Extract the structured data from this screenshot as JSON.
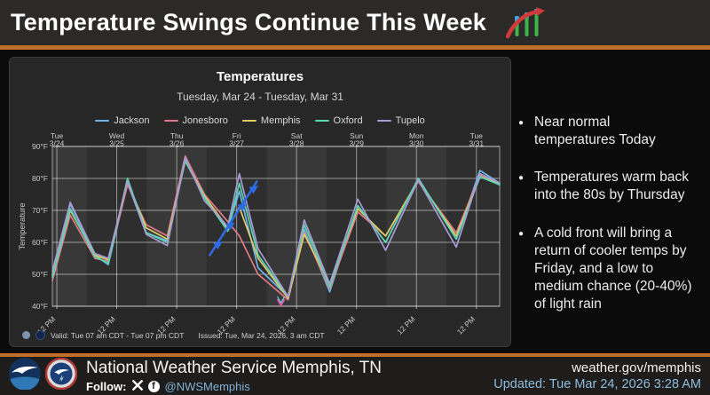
{
  "header": {
    "title": "Temperature Swings Continue This Week"
  },
  "colors": {
    "accent_orange": "#bf6f28",
    "link_blue": "#8fbcdc",
    "panel_bg": "#272727",
    "front_blue": "#2e6ae2"
  },
  "chart_panel": {
    "title": "Temperatures",
    "subtitle": "Tuesday, Mar 24 - Tuesday, Mar 31",
    "valid": "Valid: Tue 07 am CDT - Tue 07 pm CDT",
    "issued": "Issued: Tue, Mar 24, 2026, 3 am CDT"
  },
  "chart_data": {
    "type": "line",
    "title": "Temperatures",
    "subtitle": "Tuesday, Mar 24 - Tuesday, Mar 31",
    "ylabel": "Temperature",
    "ylim": [
      40,
      90
    ],
    "y_ticks_f": [
      40,
      50,
      60,
      70,
      80,
      90
    ],
    "y_tick_suffix": "°F",
    "grid": true,
    "legend_position": "top",
    "x_days": [
      {
        "day": "Tue",
        "date": "3/24"
      },
      {
        "day": "Wed",
        "date": "3/25"
      },
      {
        "day": "Thu",
        "date": "3/26"
      },
      {
        "day": "Fri",
        "date": "3/27"
      },
      {
        "day": "Sat",
        "date": "3/28"
      },
      {
        "day": "Sun",
        "date": "3/29"
      },
      {
        "day": "Mon",
        "date": "3/30"
      },
      {
        "day": "Tue",
        "date": "3/31"
      }
    ],
    "noon_label": "12 PM",
    "x_keypoints": [
      0,
      0.04,
      0.095,
      0.125,
      0.168,
      0.21,
      0.257,
      0.297,
      0.34,
      0.392,
      0.418,
      0.46,
      0.527,
      0.563,
      0.62,
      0.683,
      0.745,
      0.818,
      0.903,
      0.956,
      1.0
    ],
    "series": [
      {
        "name": "Jackson",
        "color": "#6eb6e8",
        "values": [
          50,
          72,
          56,
          53,
          78.5,
          63,
          60.5,
          86,
          74,
          64,
          76,
          52,
          43,
          64,
          44.5,
          71.5,
          60,
          80,
          61,
          82.5,
          78.5
        ]
      },
      {
        "name": "Jonesboro",
        "color": "#e17a84",
        "values": [
          48,
          68.5,
          55,
          54,
          78,
          65.5,
          62,
          87,
          75,
          66.5,
          62,
          50,
          42,
          63,
          45.5,
          69.5,
          62,
          79,
          63,
          81,
          78
        ]
      },
      {
        "name": "Memphis",
        "color": "#dfca67",
        "values": [
          49.5,
          70,
          56,
          54.5,
          79,
          64.5,
          61,
          85.5,
          74.5,
          64.5,
          71,
          55,
          42.5,
          62.5,
          47,
          70.5,
          62,
          79.5,
          62,
          80.5,
          78.5
        ]
      },
      {
        "name": "Oxford",
        "color": "#5bd6ad",
        "values": [
          49,
          70.5,
          55.5,
          53.5,
          80,
          63,
          60,
          85.5,
          74,
          63.5,
          78.5,
          56,
          43,
          65.5,
          46,
          71.5,
          60,
          80,
          61,
          80.5,
          78
        ]
      },
      {
        "name": "Tupelo",
        "color": "#a99bd6",
        "values": [
          51,
          72.5,
          56.5,
          55,
          79,
          62.5,
          59,
          86.5,
          73,
          65,
          81.5,
          58,
          43,
          67,
          47,
          73.5,
          57.5,
          79.5,
          58.5,
          81.5,
          78.5
        ]
      }
    ],
    "cold_front": {
      "x": [
        0.352,
        0.457
      ],
      "temps": [
        56,
        79
      ],
      "color": "#2e6ae2"
    },
    "axis_marker": {
      "x": 0.511,
      "colors": [
        "#e255a1",
        "#59d8e6"
      ]
    }
  },
  "bullets": [
    "Near normal\ntemperatures Today",
    "Temperatures warm back\ninto the 80s by Thursday",
    "A cold front will bring a\nreturn of cooler temps by\nFriday, and a low to\nmedium chance (20-40%)\nof light rain"
  ],
  "footer": {
    "org": "National Weather Service Memphis, TN",
    "follow_label": "Follow:",
    "handle": "@NWSMemphis",
    "site": "weather.gov/memphis",
    "updated": "Updated: Tue Mar 24, 2026 3:28 AM"
  }
}
